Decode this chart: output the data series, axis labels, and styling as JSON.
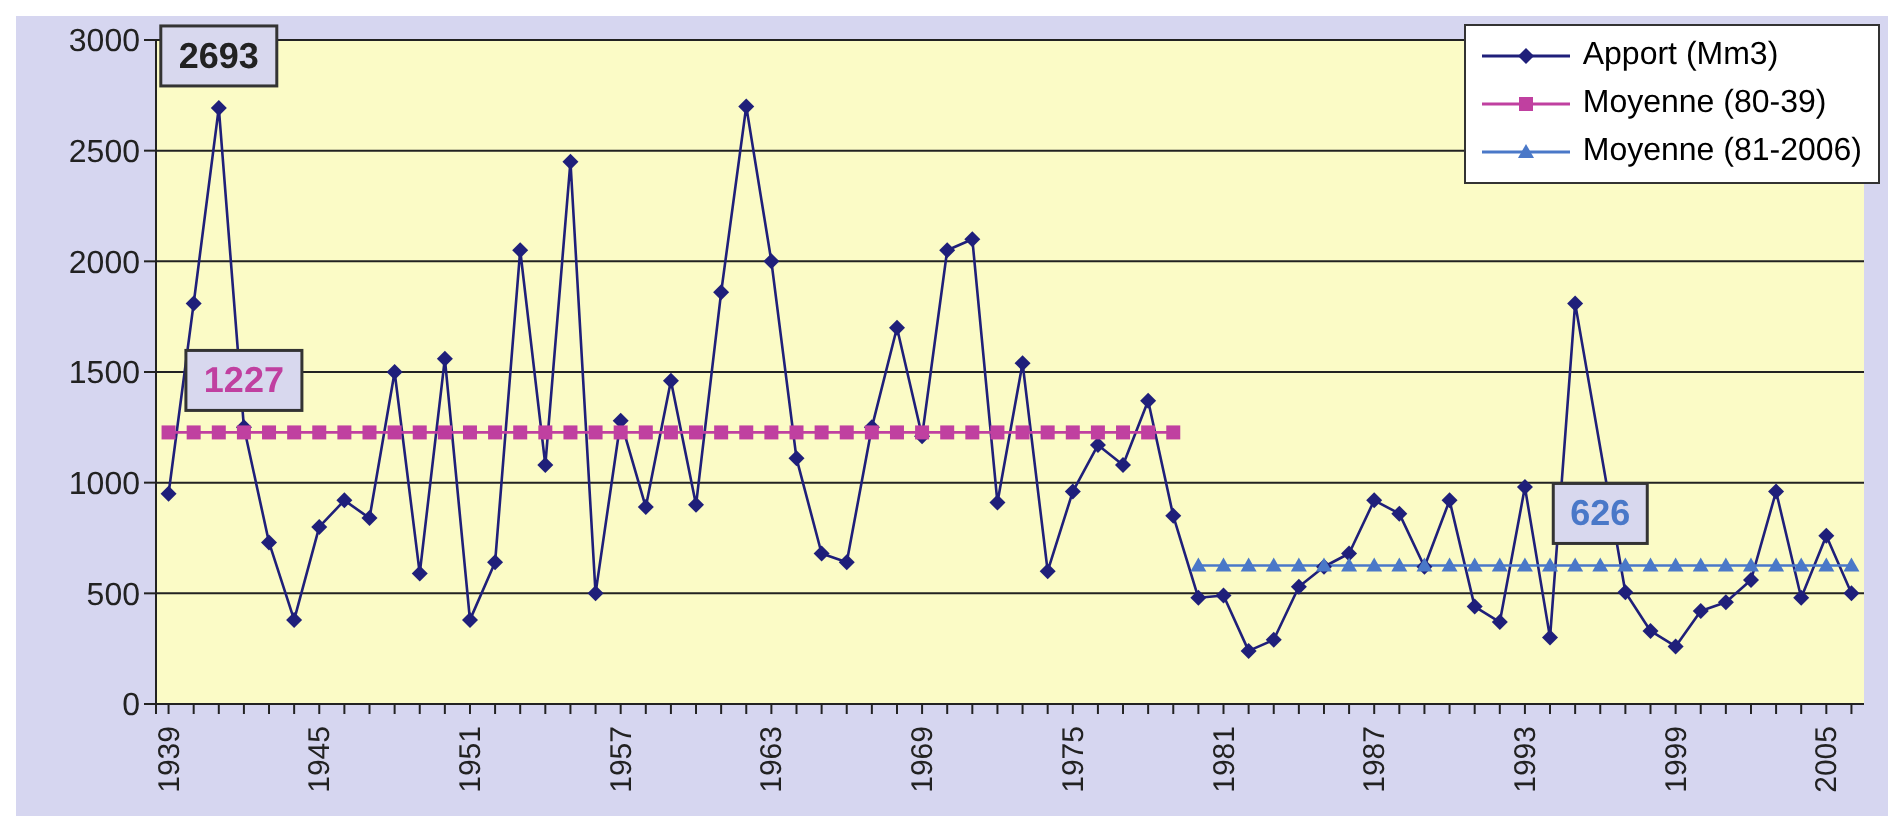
{
  "chart_data": {
    "type": "line",
    "xlim": [
      1938.5,
      2006.5
    ],
    "ylim": [
      0,
      3000
    ],
    "yticks": [
      0,
      500,
      1000,
      1500,
      2000,
      2500,
      3000
    ],
    "xticks": [
      {
        "value": 1938.5,
        "label": null
      },
      1939,
      {
        "value": 1940,
        "label": null
      },
      {
        "value": 1941,
        "label": null
      },
      {
        "value": 1942,
        "label": null
      },
      {
        "value": 1943,
        "label": null
      },
      {
        "value": 1944,
        "label": null
      },
      1945,
      {
        "value": 1946,
        "label": null
      },
      {
        "value": 1947,
        "label": null
      },
      {
        "value": 1948,
        "label": null
      },
      {
        "value": 1949,
        "label": null
      },
      {
        "value": 1950,
        "label": null
      },
      1951,
      {
        "value": 1952,
        "label": null
      },
      {
        "value": 1953,
        "label": null
      },
      {
        "value": 1954,
        "label": null
      },
      {
        "value": 1955,
        "label": null
      },
      {
        "value": 1956,
        "label": null
      },
      1957,
      {
        "value": 1958,
        "label": null
      },
      {
        "value": 1959,
        "label": null
      },
      {
        "value": 1960,
        "label": null
      },
      {
        "value": 1961,
        "label": null
      },
      {
        "value": 1962,
        "label": null
      },
      1963,
      {
        "value": 1964,
        "label": null
      },
      {
        "value": 1965,
        "label": null
      },
      {
        "value": 1966,
        "label": null
      },
      {
        "value": 1967,
        "label": null
      },
      {
        "value": 1968,
        "label": null
      },
      1969,
      {
        "value": 1970,
        "label": null
      },
      {
        "value": 1971,
        "label": null
      },
      {
        "value": 1972,
        "label": null
      },
      {
        "value": 1973,
        "label": null
      },
      {
        "value": 1974,
        "label": null
      },
      1975,
      {
        "value": 1976,
        "label": null
      },
      {
        "value": 1977,
        "label": null
      },
      {
        "value": 1978,
        "label": null
      },
      {
        "value": 1979,
        "label": null
      },
      {
        "value": 1980,
        "label": null
      },
      1981,
      {
        "value": 1982,
        "label": null
      },
      {
        "value": 1983,
        "label": null
      },
      {
        "value": 1984,
        "label": null
      },
      {
        "value": 1985,
        "label": null
      },
      {
        "value": 1986,
        "label": null
      },
      1987,
      {
        "value": 1988,
        "label": null
      },
      {
        "value": 1989,
        "label": null
      },
      {
        "value": 1990,
        "label": null
      },
      {
        "value": 1991,
        "label": null
      },
      {
        "value": 1992,
        "label": null
      },
      1993,
      {
        "value": 1994,
        "label": null
      },
      {
        "value": 1995,
        "label": null
      },
      {
        "value": 1996,
        "label": null
      },
      {
        "value": 1997,
        "label": null
      },
      {
        "value": 1998,
        "label": null
      },
      1999,
      {
        "value": 2000,
        "label": null
      },
      {
        "value": 2001,
        "label": null
      },
      {
        "value": 2002,
        "label": null
      },
      {
        "value": 2003,
        "label": null
      },
      {
        "value": 2004,
        "label": null
      },
      2005,
      {
        "value": 2006,
        "label": null
      }
    ],
    "grid": "y",
    "legend": "top right",
    "x": [
      1939,
      1940,
      1941,
      1942,
      1943,
      1944,
      1945,
      1946,
      1947,
      1948,
      1949,
      1950,
      1951,
      1952,
      1953,
      1954,
      1955,
      1956,
      1957,
      1958,
      1959,
      1960,
      1961,
      1962,
      1963,
      1964,
      1965,
      1966,
      1967,
      1968,
      1969,
      1970,
      1971,
      1972,
      1973,
      1974,
      1975,
      1976,
      1977,
      1978,
      1979,
      1980,
      1981,
      1982,
      1983,
      1984,
      1985,
      1986,
      1987,
      1988,
      1989,
      1990,
      1991,
      1992,
      1993,
      1994,
      1995,
      1996,
      1997,
      1998,
      1999,
      2000,
      2001,
      2002,
      2003,
      2004,
      2005,
      2006
    ],
    "series": [
      {
        "name": "Apport (Mm3)",
        "color": "#1f1f7a",
        "marker": "diamond",
        "values": [
          950,
          1810,
          2693,
          1250,
          730,
          380,
          800,
          920,
          840,
          1500,
          590,
          1560,
          380,
          640,
          2050,
          1080,
          2450,
          500,
          1280,
          890,
          1460,
          900,
          1860,
          2700,
          2000,
          1110,
          680,
          640,
          1250,
          1700,
          1210,
          2050,
          2100,
          910,
          1540,
          600,
          960,
          1170,
          1080,
          1370,
          850,
          480,
          490,
          240,
          290,
          530,
          620,
          680,
          920,
          860,
          620,
          920,
          440,
          370,
          980,
          300,
          1810,
          null,
          505,
          330,
          260,
          420,
          460,
          560,
          960,
          480,
          760,
          500
        ]
      },
      {
        "name": "Moyenne (80-39)",
        "color": "#c040a0",
        "marker": "square",
        "x": [
          1939,
          1940,
          1941,
          1942,
          1943,
          1944,
          1945,
          1946,
          1947,
          1948,
          1949,
          1950,
          1951,
          1952,
          1953,
          1954,
          1955,
          1956,
          1957,
          1958,
          1959,
          1960,
          1961,
          1962,
          1963,
          1964,
          1965,
          1966,
          1967,
          1968,
          1969,
          1970,
          1971,
          1972,
          1973,
          1974,
          1975,
          1976,
          1977,
          1978,
          1979
        ],
        "values": [
          1227,
          1227,
          1227,
          1227,
          1227,
          1227,
          1227,
          1227,
          1227,
          1227,
          1227,
          1227,
          1227,
          1227,
          1227,
          1227,
          1227,
          1227,
          1227,
          1227,
          1227,
          1227,
          1227,
          1227,
          1227,
          1227,
          1227,
          1227,
          1227,
          1227,
          1227,
          1227,
          1227,
          1227,
          1227,
          1227,
          1227,
          1227,
          1227,
          1227,
          1227
        ]
      },
      {
        "name": "Moyenne (81-2006)",
        "color": "#4a78c8",
        "marker": "triangle",
        "x": [
          1980,
          1981,
          1982,
          1983,
          1984,
          1985,
          1986,
          1987,
          1988,
          1989,
          1990,
          1991,
          1992,
          1993,
          1994,
          1995,
          1996,
          1997,
          1998,
          1999,
          2000,
          2001,
          2002,
          2003,
          2004,
          2005,
          2006
        ],
        "values": [
          626,
          626,
          626,
          626,
          626,
          626,
          626,
          626,
          626,
          626,
          626,
          626,
          626,
          626,
          626,
          626,
          626,
          626,
          626,
          626,
          626,
          626,
          626,
          626,
          626,
          626,
          626
        ]
      }
    ],
    "annotations": [
      {
        "text": "2693",
        "x": 1941,
        "y": 2693
      },
      {
        "text": "1227",
        "x": 1942,
        "y": 1227
      },
      {
        "text": "626",
        "x": 1996,
        "y": 626
      }
    ]
  }
}
